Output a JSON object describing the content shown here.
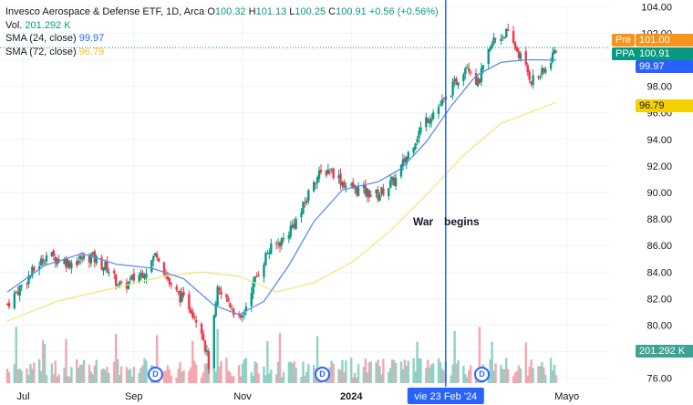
{
  "legend": {
    "title": "Invesco Aerospace & Defense ETF, 1D, Arca",
    "o_label": "O",
    "o_value": "100.32",
    "h_label": "H",
    "h_value": "101.13",
    "l_label": "L",
    "l_value": "100.25",
    "c_label": "C",
    "c_value": "100.91",
    "change": "+0.56 (+0.56%)",
    "vol_label": "Vol.",
    "vol_value": "201.292 K",
    "sma24_label": "SMA (24, close)",
    "sma24_value": "99.97",
    "sma72_label": "SMA (72, close)",
    "sma72_value": "96.79"
  },
  "price_tags": {
    "pre_label": "Pre",
    "pre_value": "101.00",
    "ppa_label": "PPA",
    "ppa_value": "100.91",
    "sma24_value": "99.97",
    "sma72_value": "96.79",
    "vol_value": "201.292 K"
  },
  "annotation": {
    "text1": "War",
    "text2": "begins"
  },
  "crosshair_date": "vie 23 Feb '24",
  "dividend_marker": "D",
  "colors": {
    "up": "#089981",
    "down": "#f23645",
    "sma24": "#5b8def",
    "sma72": "#f7e47a",
    "vertical_line": "#2962ff",
    "pre_tag": "#f7931a",
    "ppa_tag": "#089981"
  },
  "chart_data": {
    "type": "candlestick",
    "title": "Invesco Aerospace & Defense ETF, 1D, Arca",
    "y_ticks": [
      "104.00",
      "102.00",
      "100.00",
      "98.00",
      "96.00",
      "94.00",
      "92.00",
      "90.00",
      "88.00",
      "86.00",
      "84.00",
      "82.00",
      "80.00",
      "78.00",
      "76.00"
    ],
    "x_ticks": [
      "Jul",
      "Sep",
      "Nov",
      "2024",
      "Mayo"
    ],
    "ylim": [
      75.5,
      104.5
    ],
    "x_range": [
      "2023-06-22",
      "2024-04-25"
    ],
    "close_path": [
      [
        "2023-06-22",
        81.6
      ],
      [
        "2023-07-03",
        83.5
      ],
      [
        "2023-07-14",
        85.3
      ],
      [
        "2023-07-27",
        84.7
      ],
      [
        "2023-08-08",
        85.2
      ],
      [
        "2023-08-17",
        84.3
      ],
      [
        "2023-08-25",
        82.8
      ],
      [
        "2023-09-08",
        84.2
      ],
      [
        "2023-09-14",
        85.5
      ],
      [
        "2023-09-22",
        82.8
      ],
      [
        "2023-10-02",
        81.5
      ],
      [
        "2023-10-09",
        79.8
      ],
      [
        "2023-10-13",
        77.0
      ],
      [
        "2023-10-18",
        82.5
      ],
      [
        "2023-10-24",
        81.8
      ],
      [
        "2023-10-31",
        80.2
      ],
      [
        "2023-11-06",
        82.8
      ],
      [
        "2023-11-15",
        85.5
      ],
      [
        "2023-11-24",
        86.5
      ],
      [
        "2023-12-04",
        88.5
      ],
      [
        "2023-12-11",
        91.0
      ],
      [
        "2023-12-20",
        91.8
      ],
      [
        "2023-12-29",
        90.5
      ],
      [
        "2024-01-10",
        90.0
      ],
      [
        "2024-01-16",
        89.8
      ],
      [
        "2024-01-26",
        91.0
      ],
      [
        "2024-02-05",
        93.8
      ],
      [
        "2024-02-12",
        95.5
      ],
      [
        "2024-02-23",
        97.0
      ],
      [
        "2024-03-06",
        99.8
      ],
      [
        "2024-03-12",
        98.2
      ],
      [
        "2024-03-21",
        101.5
      ],
      [
        "2024-03-28",
        102.0
      ],
      [
        "2024-04-04",
        100.5
      ],
      [
        "2024-04-11",
        98.5
      ],
      [
        "2024-04-18",
        99.0
      ],
      [
        "2024-04-25",
        100.91
      ]
    ],
    "sma24_path": [
      [
        "2023-06-22",
        82.5
      ],
      [
        "2023-07-13",
        84.5
      ],
      [
        "2023-08-03",
        85.4
      ],
      [
        "2023-08-22",
        84.6
      ],
      [
        "2023-09-11",
        84.3
      ],
      [
        "2023-09-29",
        83.5
      ],
      [
        "2023-10-16",
        81.5
      ],
      [
        "2023-10-30",
        80.8
      ],
      [
        "2023-11-13",
        81.8
      ],
      [
        "2023-11-27",
        84.5
      ],
      [
        "2023-12-11",
        87.8
      ],
      [
        "2023-12-27",
        90.2
      ],
      [
        "2024-01-16",
        90.8
      ],
      [
        "2024-01-29",
        91.8
      ],
      [
        "2024-02-12",
        93.8
      ],
      [
        "2024-02-26",
        96.5
      ],
      [
        "2024-03-11",
        98.8
      ],
      [
        "2024-03-25",
        99.8
      ],
      [
        "2024-04-08",
        100.0
      ],
      [
        "2024-04-25",
        99.97
      ]
    ],
    "sma72_path": [
      [
        "2023-06-22",
        80.3
      ],
      [
        "2023-07-20",
        81.8
      ],
      [
        "2023-08-21",
        82.8
      ],
      [
        "2023-09-18",
        83.7
      ],
      [
        "2023-10-09",
        84.0
      ],
      [
        "2023-10-30",
        83.7
      ],
      [
        "2023-11-20",
        82.5
      ],
      [
        "2023-12-11",
        83.2
      ],
      [
        "2024-01-02",
        84.8
      ],
      [
        "2024-01-22",
        87.0
      ],
      [
        "2024-02-12",
        89.8
      ],
      [
        "2024-03-04",
        92.8
      ],
      [
        "2024-03-25",
        95.2
      ],
      [
        "2024-04-25",
        96.79
      ]
    ],
    "events": [
      {
        "date": "2024-02-23",
        "label": "War begins"
      }
    ],
    "dividends": [
      "2023-09-25",
      "2023-12-18",
      "2024-03-18"
    ],
    "last_volume": "201.292 K"
  }
}
